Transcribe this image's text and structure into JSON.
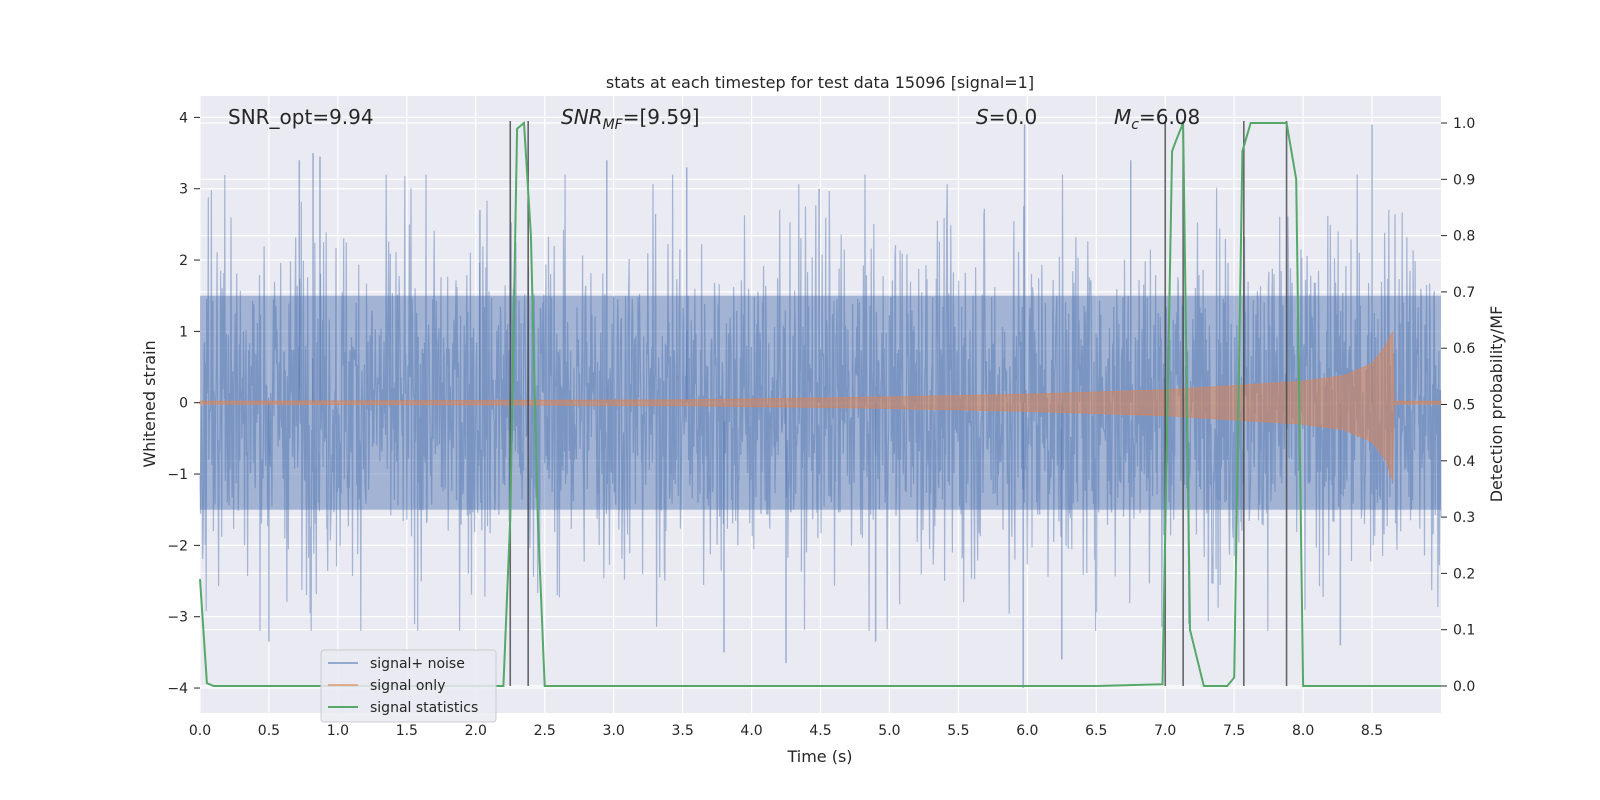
{
  "chart_data": {
    "type": "line",
    "title": "stats at each timestep for test data 15096 [signal=1]",
    "xlabel": "Time (s)",
    "ylabel": "Whitened strain",
    "ylabel_right": "Detection probability/MF",
    "xlim": [
      0.0,
      9.0
    ],
    "ylim": [
      -4.35,
      4.3
    ],
    "ylim_right": [
      -0.048,
      1.048
    ],
    "x_ticks": [
      "0.0",
      "0.5",
      "1.0",
      "1.5",
      "2.0",
      "2.5",
      "3.0",
      "3.5",
      "4.0",
      "4.5",
      "5.0",
      "5.5",
      "6.0",
      "6.5",
      "7.0",
      "7.5",
      "8.0",
      "8.5"
    ],
    "y_ticks": [
      "4",
      "3",
      "2",
      "1",
      "0",
      "−1",
      "−2",
      "−3",
      "−4"
    ],
    "y_right_ticks": [
      "1.0",
      "0.9",
      "0.8",
      "0.7",
      "0.6",
      "0.5",
      "0.4",
      "0.3",
      "0.2",
      "0.1",
      "0.0"
    ],
    "grid": true,
    "legend_position": "lower-left",
    "annotations": {
      "snr_opt": "SNR_opt=9.94",
      "snr_mf_main": "SNR",
      "snr_mf_sub": "MF",
      "snr_mf_rest": "=[9.59]",
      "s_main": "S",
      "s_rest": "=0.0",
      "mc_main": "M",
      "mc_sub": "c",
      "mc_rest": "=6.08"
    },
    "series": [
      {
        "name": "signal+ noise",
        "color": "#4c72b0",
        "description_only": false,
        "envelope_note": "noise",
        "typical_amplitude": 1.6,
        "peak_values": [
          {
            "x": 0.82,
            "y": 3.5
          },
          {
            "x": 0.87,
            "y": 3.45
          },
          {
            "x": 0.72,
            "y": 3.4
          },
          {
            "x": 2.03,
            "y": 2.7
          },
          {
            "x": 2.95,
            "y": 3.4
          },
          {
            "x": 3.53,
            "y": 3.3
          },
          {
            "x": 4.49,
            "y": 3.0
          },
          {
            "x": 5.98,
            "y": 3.9
          },
          {
            "x": 6.75,
            "y": 3.4
          },
          {
            "x": 8.5,
            "y": 3.9
          },
          {
            "x": 0.5,
            "y": -3.35
          },
          {
            "x": 3.8,
            "y": -3.5
          },
          {
            "x": 4.25,
            "y": -3.65
          },
          {
            "x": 4.9,
            "y": -3.35
          },
          {
            "x": 5.97,
            "y": -4.0
          },
          {
            "x": 6.25,
            "y": -3.6
          },
          {
            "x": 8.27,
            "y": -3.4
          }
        ]
      },
      {
        "name": "signal only",
        "color": "#dd8452",
        "envelope": [
          {
            "x": 0.0,
            "y": 0.02
          },
          {
            "x": 3.5,
            "y": 0.04
          },
          {
            "x": 5.0,
            "y": 0.08
          },
          {
            "x": 6.0,
            "y": 0.12
          },
          {
            "x": 7.0,
            "y": 0.18
          },
          {
            "x": 7.5,
            "y": 0.24
          },
          {
            "x": 8.0,
            "y": 0.3
          },
          {
            "x": 8.3,
            "y": 0.38
          },
          {
            "x": 8.5,
            "y": 0.55
          },
          {
            "x": 8.6,
            "y": 0.8
          },
          {
            "x": 8.65,
            "y": 1.0
          },
          {
            "x": 8.66,
            "y": 0.02
          },
          {
            "x": 9.0,
            "y": 0.02
          }
        ]
      },
      {
        "name": "signal statistics",
        "color": "#55a868",
        "x": [
          0.0,
          0.05,
          0.1,
          0.2,
          0.5,
          1.0,
          1.5,
          2.0,
          2.2,
          2.25,
          2.3,
          2.35,
          2.4,
          2.45,
          2.5,
          2.6,
          3.0,
          4.0,
          5.0,
          6.0,
          6.5,
          6.98,
          7.05,
          7.08,
          7.13,
          7.18,
          7.28,
          7.35,
          7.45,
          7.5,
          7.56,
          7.62,
          7.7,
          7.8,
          7.88,
          7.95,
          8.0,
          8.5,
          9.0
        ],
        "y": [
          0.19,
          0.005,
          0.0,
          0.0,
          0.0,
          0.0,
          0.0,
          0.0,
          0.0,
          0.3,
          0.99,
          1.0,
          0.8,
          0.3,
          0.0,
          0.0,
          0.0,
          0.0,
          0.0,
          0.0,
          0.0,
          0.003,
          0.95,
          0.97,
          1.0,
          0.1,
          0.0,
          0.0,
          0.0,
          0.015,
          0.95,
          1.0,
          1.0,
          1.0,
          1.0,
          0.9,
          0.0,
          0.0,
          0.0
        ]
      }
    ],
    "vertical_lines": [
      {
        "x": 2.25,
        "y_top": 1.0,
        "y_bottom": 0.0
      },
      {
        "x": 2.38,
        "y_top": 1.0,
        "y_bottom": 0.0
      },
      {
        "x": 7.0,
        "y_top": 1.0,
        "y_bottom": 0.0
      },
      {
        "x": 7.13,
        "y_top": 1.0,
        "y_bottom": 0.0
      },
      {
        "x": 7.57,
        "y_top": 1.0,
        "y_bottom": 0.0
      },
      {
        "x": 7.88,
        "y_top": 1.0,
        "y_bottom": 0.0
      }
    ]
  }
}
